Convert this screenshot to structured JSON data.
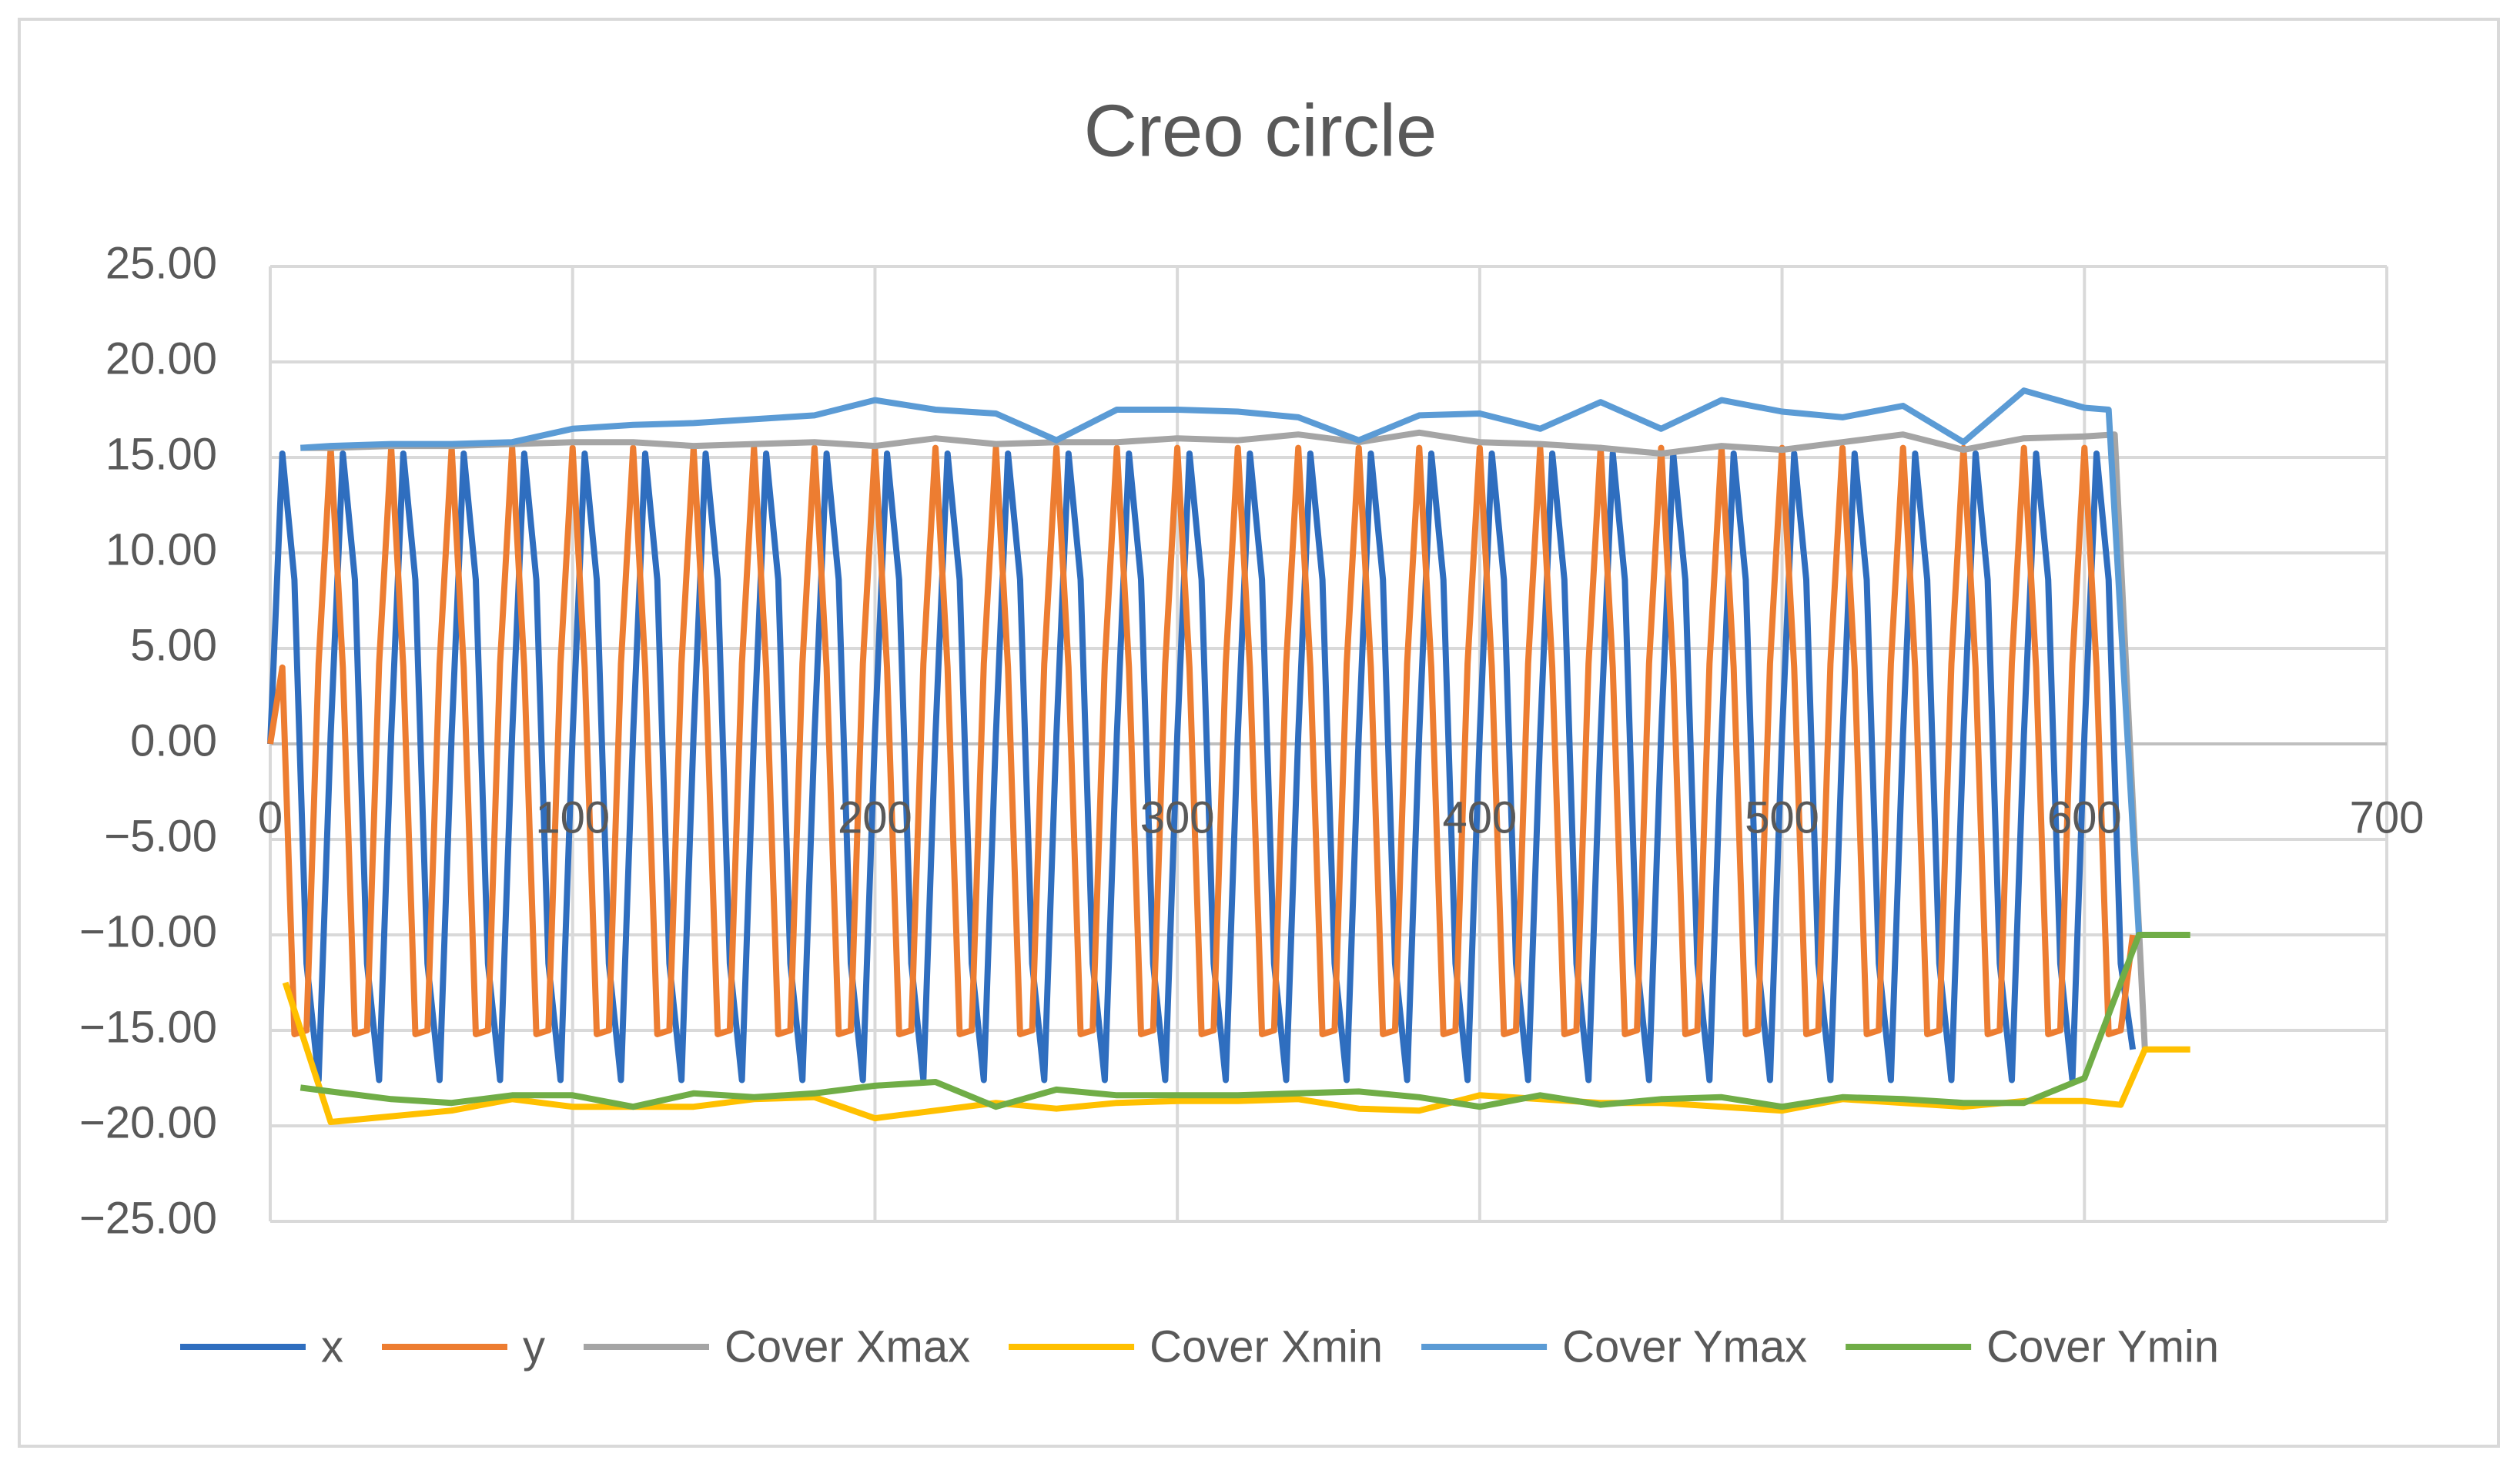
{
  "chart_data": {
    "type": "line",
    "title": "Creo circle",
    "xlim": [
      0,
      700
    ],
    "xticks": [
      0,
      100,
      200,
      300,
      400,
      500,
      600,
      700
    ],
    "ylim": [
      -25,
      25
    ],
    "yticks": [
      {
        "value": -25,
        "label": "−25.00"
      },
      {
        "value": -20,
        "label": "−20.00"
      },
      {
        "value": -15,
        "label": "−15.00"
      },
      {
        "value": -10,
        "label": "−10.00"
      },
      {
        "value": -5,
        "label": "−5.00"
      },
      {
        "value": 0,
        "label": "0.00"
      },
      {
        "value": 5,
        "label": "5.00"
      },
      {
        "value": 10,
        "label": "10.00"
      },
      {
        "value": 15,
        "label": "15.00"
      },
      {
        "value": 20,
        "label": "20.00"
      },
      {
        "value": 25,
        "label": "25.00"
      }
    ],
    "grid": true,
    "legend": "bottom",
    "series": [
      {
        "name": "x",
        "color": "#2f6ebf",
        "x": [
          0,
          4,
          8,
          12,
          16,
          20,
          24,
          28,
          32,
          36,
          40,
          44,
          48,
          52,
          56,
          60,
          64,
          68,
          72,
          76,
          80,
          84,
          88,
          92,
          96,
          100,
          104,
          108,
          112,
          116,
          120,
          124,
          128,
          132,
          136,
          140,
          144,
          148,
          152,
          156,
          160,
          164,
          168,
          172,
          176,
          180,
          184,
          188,
          192,
          196,
          200,
          204,
          208,
          212,
          216,
          220,
          224,
          228,
          232,
          236,
          240,
          244,
          248,
          252,
          256,
          260,
          264,
          268,
          272,
          276,
          280,
          284,
          288,
          292,
          296,
          300,
          304,
          308,
          312,
          316,
          320,
          324,
          328,
          332,
          336,
          340,
          344,
          348,
          352,
          356,
          360,
          364,
          368,
          372,
          376,
          380,
          384,
          388,
          392,
          396,
          400,
          404,
          408,
          412,
          416,
          420,
          424,
          428,
          432,
          436,
          440,
          444,
          448,
          452,
          456,
          460,
          464,
          468,
          472,
          476,
          480,
          484,
          488,
          492,
          496,
          500,
          504,
          508,
          512,
          516,
          520,
          524,
          528,
          532,
          536,
          540,
          544,
          548,
          552,
          556,
          560,
          564,
          568,
          572,
          576,
          580,
          584,
          588,
          592,
          596,
          600,
          604,
          608,
          612,
          616
        ],
        "values": [
          0,
          15.2,
          8.6,
          -11.5,
          -17.6,
          0.5,
          15.2,
          8.6,
          -11.5,
          -17.6,
          0.5,
          15.2,
          8.6,
          -11.5,
          -17.6,
          0.5,
          15.2,
          8.6,
          -11.5,
          -17.6,
          0.5,
          15.2,
          8.6,
          -11.5,
          -17.6,
          0.5,
          15.2,
          8.6,
          -11.5,
          -17.6,
          0.5,
          15.2,
          8.6,
          -11.5,
          -17.6,
          0.5,
          15.2,
          8.6,
          -11.5,
          -17.6,
          0.5,
          15.2,
          8.6,
          -11.5,
          -17.6,
          0.5,
          15.2,
          8.6,
          -11.5,
          -17.6,
          0.5,
          15.2,
          8.6,
          -11.5,
          -17.6,
          0.5,
          15.2,
          8.6,
          -11.5,
          -17.6,
          0.5,
          15.2,
          8.6,
          -11.5,
          -17.6,
          0.5,
          15.2,
          8.6,
          -11.5,
          -17.6,
          0.5,
          15.2,
          8.6,
          -11.5,
          -17.6,
          0.5,
          15.2,
          8.6,
          -11.5,
          -17.6,
          0.5,
          15.2,
          8.6,
          -11.5,
          -17.6,
          0.5,
          15.2,
          8.6,
          -11.5,
          -17.6,
          0.5,
          15.2,
          8.6,
          -11.5,
          -17.6,
          0.5,
          15.2,
          8.6,
          -11.5,
          -17.6,
          0.5,
          15.2,
          8.6,
          -11.5,
          -17.6,
          0.5,
          15.2,
          8.6,
          -11.5,
          -17.6,
          0.5,
          15.2,
          8.6,
          -11.5,
          -17.6,
          0.5,
          15.2,
          8.6,
          -11.5,
          -17.6,
          0.5,
          15.2,
          8.6,
          -11.5,
          -17.6,
          0.5,
          15.2,
          8.6,
          -11.5,
          -17.6,
          0.5,
          15.2,
          8.6,
          -11.5,
          -17.6,
          0.5,
          15.2,
          8.6,
          -11.5,
          -17.6,
          0.5,
          15.2,
          8.6,
          -11.5,
          -17.6,
          0.5,
          15.2,
          8.6,
          -11.5,
          -17.6,
          0.5,
          15.2,
          8.6,
          -11.5,
          -16.0
        ]
      },
      {
        "name": "y",
        "color": "#ed7d31",
        "x": [
          0,
          4,
          8,
          12,
          16,
          20,
          24,
          28,
          32,
          36,
          40,
          44,
          48,
          52,
          56,
          60,
          64,
          68,
          72,
          76,
          80,
          84,
          88,
          92,
          96,
          100,
          104,
          108,
          112,
          116,
          120,
          124,
          128,
          132,
          136,
          140,
          144,
          148,
          152,
          156,
          160,
          164,
          168,
          172,
          176,
          180,
          184,
          188,
          192,
          196,
          200,
          204,
          208,
          212,
          216,
          220,
          224,
          228,
          232,
          236,
          240,
          244,
          248,
          252,
          256,
          260,
          264,
          268,
          272,
          276,
          280,
          284,
          288,
          292,
          296,
          300,
          304,
          308,
          312,
          316,
          320,
          324,
          328,
          332,
          336,
          340,
          344,
          348,
          352,
          356,
          360,
          364,
          368,
          372,
          376,
          380,
          384,
          388,
          392,
          396,
          400,
          404,
          408,
          412,
          416,
          420,
          424,
          428,
          432,
          436,
          440,
          444,
          448,
          452,
          456,
          460,
          464,
          468,
          472,
          476,
          480,
          484,
          488,
          492,
          496,
          500,
          504,
          508,
          512,
          516,
          520,
          524,
          528,
          532,
          536,
          540,
          544,
          548,
          552,
          556,
          560,
          564,
          568,
          572,
          576,
          580,
          584,
          588,
          592,
          596,
          600,
          604,
          608,
          612,
          616
        ],
        "values": [
          0,
          4.0,
          -15.2,
          -15.0,
          4.2,
          15.5,
          4.0,
          -15.2,
          -15.0,
          4.2,
          15.5,
          4.0,
          -15.2,
          -15.0,
          4.2,
          15.5,
          4.0,
          -15.2,
          -15.0,
          4.2,
          15.5,
          4.0,
          -15.2,
          -15.0,
          4.2,
          15.5,
          4.0,
          -15.2,
          -15.0,
          4.2,
          15.5,
          4.0,
          -15.2,
          -15.0,
          4.2,
          15.5,
          4.0,
          -15.2,
          -15.0,
          4.2,
          15.5,
          4.0,
          -15.2,
          -15.0,
          4.2,
          15.5,
          4.0,
          -15.2,
          -15.0,
          4.2,
          15.5,
          4.0,
          -15.2,
          -15.0,
          4.2,
          15.5,
          4.0,
          -15.2,
          -15.0,
          4.2,
          15.5,
          4.0,
          -15.2,
          -15.0,
          4.2,
          15.5,
          4.0,
          -15.2,
          -15.0,
          4.2,
          15.5,
          4.0,
          -15.2,
          -15.0,
          4.2,
          15.5,
          4.0,
          -15.2,
          -15.0,
          4.2,
          15.5,
          4.0,
          -15.2,
          -15.0,
          4.2,
          15.5,
          4.0,
          -15.2,
          -15.0,
          4.2,
          15.5,
          4.0,
          -15.2,
          -15.0,
          4.2,
          15.5,
          4.0,
          -15.2,
          -15.0,
          4.2,
          15.5,
          4.0,
          -15.2,
          -15.0,
          4.2,
          15.5,
          4.0,
          -15.2,
          -15.0,
          4.2,
          15.5,
          4.0,
          -15.2,
          -15.0,
          4.2,
          15.5,
          4.0,
          -15.2,
          -15.0,
          4.2,
          15.5,
          4.0,
          -15.2,
          -15.0,
          4.2,
          15.5,
          4.0,
          -15.2,
          -15.0,
          4.2,
          15.5,
          4.0,
          -15.2,
          -15.0,
          4.2,
          15.5,
          4.0,
          -15.2,
          -15.0,
          4.2,
          15.5,
          4.0,
          -15.2,
          -15.0,
          4.2,
          15.5,
          4.0,
          -15.2,
          -15.0,
          4.2,
          15.5,
          4.0,
          -15.2,
          -15.0,
          -10.0
        ]
      },
      {
        "name": "Cover Xmax",
        "color": "#a5a5a5",
        "x": [
          10,
          20,
          40,
          60,
          80,
          100,
          120,
          140,
          160,
          180,
          200,
          220,
          240,
          260,
          280,
          300,
          320,
          340,
          360,
          380,
          400,
          420,
          440,
          460,
          480,
          500,
          520,
          540,
          560,
          580,
          600,
          610,
          620
        ],
        "values": [
          15.5,
          15.5,
          15.6,
          15.6,
          15.7,
          15.8,
          15.8,
          15.6,
          15.7,
          15.8,
          15.6,
          16.0,
          15.7,
          15.8,
          15.8,
          16.0,
          15.9,
          16.2,
          15.8,
          16.3,
          15.8,
          15.7,
          15.5,
          15.2,
          15.6,
          15.4,
          15.8,
          16.2,
          15.4,
          16.0,
          16.1,
          16.2,
          -16.0
        ]
      },
      {
        "name": "Cover Xmin",
        "color": "#ffc000",
        "x": [
          5,
          20,
          40,
          60,
          80,
          100,
          120,
          140,
          160,
          180,
          200,
          220,
          240,
          260,
          280,
          300,
          320,
          340,
          360,
          380,
          400,
          420,
          440,
          460,
          480,
          500,
          520,
          540,
          560,
          580,
          600,
          612,
          620,
          635
        ],
        "values": [
          -12.5,
          -19.8,
          -19.5,
          -19.2,
          -18.6,
          -19.0,
          -19.0,
          -19.0,
          -18.6,
          -18.5,
          -19.6,
          -19.2,
          -18.8,
          -19.1,
          -18.8,
          -18.7,
          -18.7,
          -18.6,
          -19.1,
          -19.2,
          -18.4,
          -18.6,
          -18.8,
          -18.8,
          -19.0,
          -19.2,
          -18.6,
          -18.8,
          -19.0,
          -18.7,
          -18.7,
          -18.9,
          -16.0,
          -16.0
        ]
      },
      {
        "name": "Cover Ymax",
        "color": "#5b9bd5",
        "x": [
          10,
          20,
          40,
          60,
          80,
          100,
          120,
          140,
          160,
          180,
          200,
          220,
          240,
          260,
          280,
          300,
          320,
          340,
          360,
          380,
          400,
          420,
          440,
          460,
          480,
          500,
          520,
          540,
          560,
          580,
          600,
          608,
          618
        ],
        "values": [
          15.5,
          15.6,
          15.7,
          15.7,
          15.8,
          16.5,
          16.7,
          16.8,
          17.0,
          17.2,
          18.0,
          17.5,
          17.3,
          15.9,
          17.5,
          17.5,
          17.4,
          17.1,
          15.9,
          17.2,
          17.3,
          16.5,
          17.9,
          16.5,
          18.0,
          17.4,
          17.1,
          17.7,
          15.8,
          18.5,
          17.6,
          17.5,
          -10.0
        ]
      },
      {
        "name": "Cover Ymin",
        "color": "#70ad47",
        "x": [
          10,
          20,
          40,
          60,
          80,
          100,
          120,
          140,
          160,
          180,
          200,
          220,
          240,
          260,
          280,
          300,
          320,
          340,
          360,
          380,
          400,
          420,
          440,
          460,
          480,
          500,
          520,
          540,
          560,
          580,
          600,
          618,
          635
        ],
        "values": [
          -18.0,
          -18.2,
          -18.6,
          -18.8,
          -18.4,
          -18.4,
          -19.0,
          -18.3,
          -18.5,
          -18.3,
          -17.9,
          -17.7,
          -19.0,
          -18.1,
          -18.4,
          -18.4,
          -18.4,
          -18.3,
          -18.2,
          -18.5,
          -19.0,
          -18.4,
          -18.9,
          -18.6,
          -18.5,
          -19.0,
          -18.5,
          -18.6,
          -18.8,
          -18.8,
          -17.5,
          -10.0,
          -10.0
        ]
      }
    ]
  }
}
